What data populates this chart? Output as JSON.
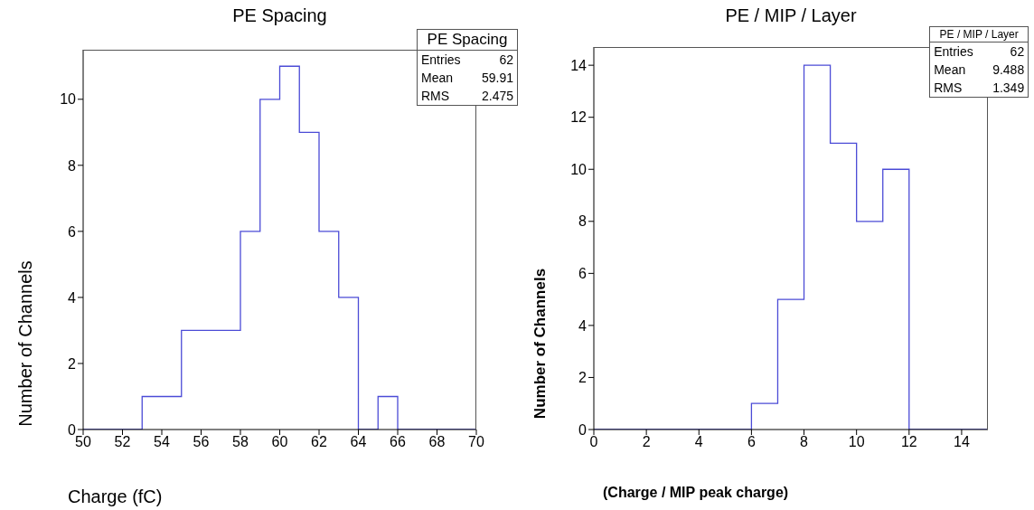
{
  "chart_data": [
    {
      "type": "histogram",
      "title": "PE Spacing",
      "xlabel": "Charge (fC)",
      "ylabel": "Number of Channels",
      "color": "#4b4bd6",
      "bins": [
        50,
        51,
        52,
        53,
        54,
        55,
        56,
        57,
        58,
        59,
        60,
        61,
        62,
        63,
        64,
        65,
        66,
        67,
        68,
        69,
        70
      ],
      "values": [
        0,
        0,
        0,
        1,
        1,
        3,
        3,
        3,
        6,
        10,
        11,
        9,
        6,
        4,
        0,
        1,
        0,
        0,
        0,
        0
      ],
      "xlim": [
        50,
        70
      ],
      "xticks": [
        50,
        52,
        54,
        56,
        58,
        60,
        62,
        64,
        66,
        68,
        70
      ],
      "ylim": [
        0,
        11.5
      ],
      "yticks": [
        0,
        2,
        4,
        6,
        8,
        10
      ],
      "annotations": [
        "PE Spacing",
        "Entries 62",
        "Mean 59.91",
        "RMS 2.475"
      ],
      "grid": false,
      "legend": false
    },
    {
      "type": "histogram",
      "title": "PE / MIP / Layer",
      "xlabel": "(Charge / MIP peak charge)",
      "ylabel": "Number of Channels",
      "color": "#4b4bd6",
      "bins": [
        0,
        1,
        2,
        3,
        4,
        5,
        6,
        7,
        8,
        9,
        10,
        11,
        12,
        13,
        14,
        15
      ],
      "values": [
        0,
        0,
        0,
        0,
        0,
        0,
        1,
        5,
        14,
        11,
        8,
        10,
        0,
        0,
        0
      ],
      "xlim": [
        0,
        15
      ],
      "xticks": [
        0,
        2,
        4,
        6,
        8,
        10,
        12,
        14
      ],
      "ylim": [
        0,
        14.7
      ],
      "yticks": [
        0,
        2,
        4,
        6,
        8,
        10,
        12,
        14
      ],
      "annotations": [
        "PE / MIP / Layer",
        "Entries 62",
        "Mean 9.488",
        "RMS 1.349"
      ],
      "grid": false,
      "legend": false
    }
  ]
}
